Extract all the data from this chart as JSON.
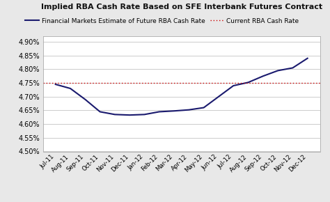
{
  "title": "Implied RBA Cash Rate Based on SFE Interbank Futures Contract",
  "line_label": "Financial Markets Estimate of Future RBA Cash Rate",
  "hline_label": "Current RBA Cash Rate",
  "hline_value": 0.0475,
  "line_color": "#1a1a6e",
  "hline_color": "#cc0000",
  "background_color": "#e8e8e8",
  "plot_bg_color": "#ffffff",
  "ylim": [
    0.045,
    0.0492
  ],
  "yticks": [
    0.045,
    0.0455,
    0.046,
    0.0465,
    0.047,
    0.0475,
    0.048,
    0.0485,
    0.049
  ],
  "categories": [
    "Jul-11",
    "Aug-11",
    "Sep-11",
    "Oct-11",
    "Nov-11",
    "Dec-11",
    "Jan-12",
    "Feb-12",
    "Mar-12",
    "Apr-12",
    "May-12",
    "Jun-12",
    "Jul-12",
    "Aug-12",
    "Sep-12",
    "Oct-12",
    "Nov-12",
    "Dec-12"
  ],
  "values": [
    0.04745,
    0.0473,
    0.0469,
    0.04645,
    0.04635,
    0.04633,
    0.04635,
    0.04645,
    0.04648,
    0.04652,
    0.0466,
    0.047,
    0.0474,
    0.04752,
    0.04775,
    0.04795,
    0.04805,
    0.0484
  ]
}
